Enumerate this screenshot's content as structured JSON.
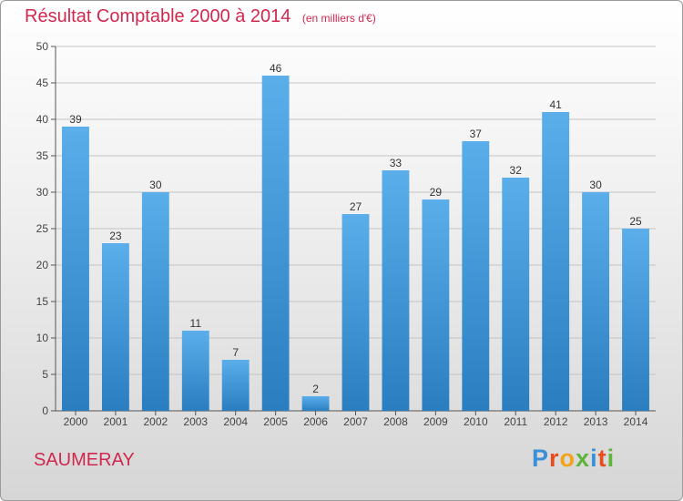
{
  "chart_data": {
    "type": "bar",
    "title": "Résultat Comptable 2000 à 2014",
    "subtitle": "(en milliers d'€)",
    "categories": [
      "2000",
      "2001",
      "2002",
      "2003",
      "2004",
      "2005",
      "2006",
      "2007",
      "2008",
      "2009",
      "2010",
      "2011",
      "2012",
      "2013",
      "2014"
    ],
    "values": [
      39,
      23,
      30,
      11,
      7,
      46,
      2,
      27,
      33,
      29,
      37,
      32,
      41,
      30,
      25
    ],
    "ylim": [
      0,
      50
    ],
    "yticks": [
      0,
      5,
      10,
      15,
      20,
      25,
      30,
      35,
      40,
      45,
      50
    ],
    "xlabel": "",
    "ylabel": "",
    "grid": true,
    "bar_color_top": "#5aaeea",
    "bar_color_bottom": "#2a7ec0",
    "title_color": "#d0284f"
  },
  "footer": {
    "commune": "SAUMERAY",
    "logo_text": "Proxiti",
    "logo_colors": [
      "#3a8fd6",
      "#e94b1c",
      "#f2a31a",
      "#5fb43b",
      "#3a8fd6",
      "#e94b1c",
      "#5fb43b"
    ]
  }
}
